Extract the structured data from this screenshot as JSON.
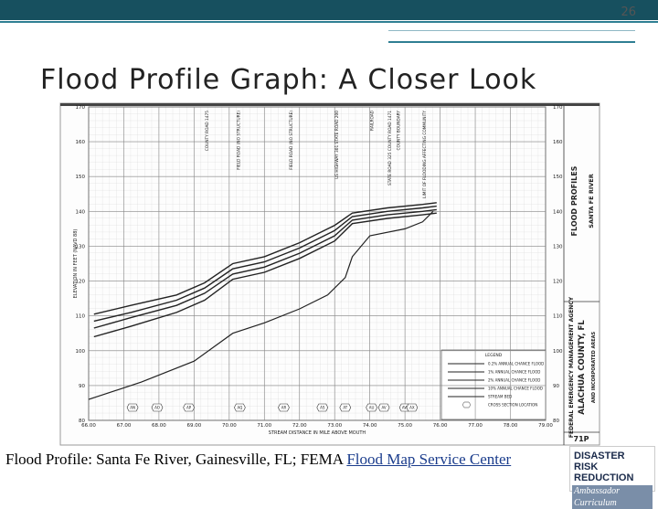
{
  "slide": {
    "number": "26",
    "title": "Flood Profile Graph: A Closer Look",
    "caption": "Flood Profile: Santa Fe River, Gainesville, FL; FEMA ",
    "caption_link": "Flood Map Service Center",
    "logo": [
      "DISASTER",
      "RISK REDUCTION",
      "Ambassador Curriculum"
    ]
  },
  "chart_data": {
    "type": "line",
    "ylabel": "ELEVATION IN FEET (NAVD 88)",
    "xlabel": "STREAM DISTANCE IN MILE ABOVE MOUTH",
    "xlim": [
      66,
      79
    ],
    "ylim": [
      80,
      170
    ],
    "xticks": [
      {
        "value": 66,
        "label": "66.00"
      },
      {
        "value": 67,
        "label": "67.00"
      },
      {
        "value": 68,
        "label": "68.00"
      },
      {
        "value": 69,
        "label": "69.00"
      },
      {
        "value": 70,
        "label": "70.00"
      },
      {
        "value": 71,
        "label": "71.00"
      },
      {
        "value": 72,
        "label": "72.00"
      },
      {
        "value": 73,
        "label": "73.00"
      },
      {
        "value": 74,
        "label": "74.00"
      },
      {
        "value": 75,
        "label": "75.00"
      },
      {
        "value": 76,
        "label": "76.00"
      },
      {
        "value": 77,
        "label": "77.00"
      },
      {
        "value": 78,
        "label": "78.00"
      },
      {
        "value": 79,
        "label": "79.00"
      }
    ],
    "yticks": [
      80,
      90,
      100,
      110,
      120,
      130,
      140,
      150,
      160,
      170
    ],
    "grid": true,
    "series": [
      {
        "name": "0.2% ANNUAL CHANCE FLOOD",
        "color": "#222",
        "x": [
          66.15,
          67.2,
          68.5,
          69.3,
          70.1,
          71,
          72,
          73,
          73.5,
          74.5,
          75.5,
          75.9
        ],
        "values": [
          110.5,
          113,
          116,
          119.5,
          125,
          127,
          131,
          136,
          139.5,
          141,
          142,
          142.5
        ]
      },
      {
        "name": "1% ANNUAL CHANCE FLOOD",
        "color": "#222",
        "x": [
          66.15,
          67.2,
          68.5,
          69.3,
          70.1,
          71,
          72,
          73,
          73.5,
          74.5,
          75.5,
          75.9
        ],
        "values": [
          108.5,
          111,
          114.5,
          118,
          123.5,
          125.5,
          129.5,
          134.5,
          138.5,
          140,
          141,
          141.5
        ]
      },
      {
        "name": "2% ANNUAL CHANCE FLOOD",
        "color": "#222",
        "x": [
          66.15,
          67.2,
          68.5,
          69.3,
          70.1,
          71,
          72,
          73,
          73.5,
          74.5,
          75.5,
          75.9
        ],
        "values": [
          106.5,
          109.5,
          113,
          116.5,
          122,
          124,
          128,
          133,
          137.5,
          139,
          140,
          140.5
        ]
      },
      {
        "name": "10% ANNUAL CHANCE FLOOD",
        "color": "#222",
        "x": [
          66.15,
          67.2,
          68.5,
          69.3,
          70.1,
          71,
          72,
          73,
          73.5,
          74.5,
          75.5,
          75.9
        ],
        "values": [
          104,
          107,
          111,
          114.5,
          120.5,
          122.5,
          126.5,
          131.5,
          136.5,
          138,
          139,
          139.5
        ]
      },
      {
        "name": "STREAM BED",
        "color": "#222",
        "x": [
          66,
          67.5,
          69,
          70.1,
          71,
          72,
          72.8,
          73.3,
          73.5,
          74,
          75,
          75.5,
          75.8
        ],
        "values": [
          86,
          91,
          97,
          105,
          108,
          112,
          116,
          121,
          127,
          133,
          135,
          137,
          140
        ]
      }
    ],
    "legend_title": "LEGEND",
    "cross_section_legend": "CROSS SECTION LOCATION",
    "cross_sections": [
      {
        "label": "AN",
        "x": 67.25
      },
      {
        "label": "AO",
        "x": 67.95
      },
      {
        "label": "AP",
        "x": 68.85
      },
      {
        "label": "AQ",
        "x": 70.3
      },
      {
        "label": "AR",
        "x": 71.55
      },
      {
        "label": "AS",
        "x": 72.65
      },
      {
        "label": "AT",
        "x": 73.3
      },
      {
        "label": "AU",
        "x": 74.05
      },
      {
        "label": "AV",
        "x": 74.4
      },
      {
        "label": "AW",
        "x": 75.0
      },
      {
        "label": "AX",
        "x": 75.2
      }
    ],
    "structures": [
      {
        "label": "COUNTY ROAD 1475",
        "x": 69.4
      },
      {
        "label": "FIELD ROAD (NO STRUCTURE)",
        "x": 70.3
      },
      {
        "label": "FIELD ROAD (NO STRUCTURE)",
        "x": 71.8
      },
      {
        "label": "US HIGHWAY 301 STATE ROAD 200",
        "x": 73.1
      },
      {
        "label": "RAILROAD",
        "x": 74.1
      },
      {
        "label": "STATE ROAD 325 COUNTY ROAD 1471",
        "x": 74.6
      },
      {
        "label": "COUNTY BOUNDARY",
        "x": 74.85
      },
      {
        "label": "LIMIT OF FLOODING AFFECTING COMMUNITY",
        "x": 75.6
      }
    ],
    "panel": {
      "top": [
        "FLOOD PROFILES",
        "SANTA FE RIVER"
      ],
      "bottom": [
        "FEDERAL EMERGENCY MANAGEMENT AGENCY",
        "ALACHUA COUNTY, FL",
        "AND INCORPORATED AREAS"
      ],
      "sheet": "71P"
    }
  }
}
